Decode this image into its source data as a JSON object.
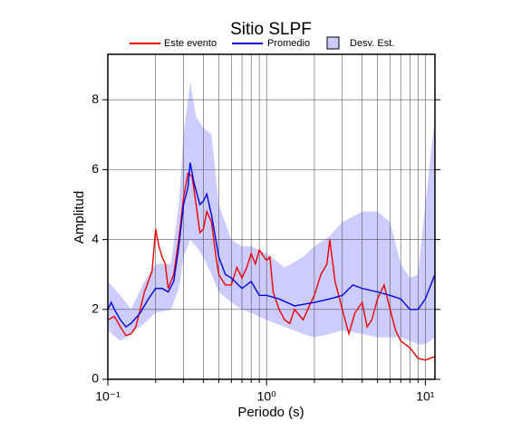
{
  "chart_data": {
    "type": "line",
    "title": "Sitio SLPF",
    "xlabel": "Periodo (s)",
    "ylabel": "Amplitud",
    "xscale": "log",
    "xlim": [
      0.1,
      11.5
    ],
    "ylim": [
      0,
      9.3
    ],
    "xticks": [
      {
        "value": 0.1,
        "label": "10⁻¹"
      },
      {
        "value": 1,
        "label": "10⁰"
      },
      {
        "value": 10,
        "label": "10¹"
      }
    ],
    "xgrid": [
      0.2,
      0.3,
      0.4,
      0.5,
      0.6,
      0.7,
      0.8,
      0.9,
      2,
      3,
      4,
      5,
      6,
      7,
      8,
      9
    ],
    "yticks": [
      0,
      2,
      4,
      6,
      8
    ],
    "grid": true,
    "band": {
      "name": "Desv. Est.",
      "color": "#ccccff",
      "x": [
        0.1,
        0.12,
        0.14,
        0.17,
        0.2,
        0.25,
        0.28,
        0.3,
        0.33,
        0.36,
        0.4,
        0.45,
        0.5,
        0.6,
        0.7,
        0.8,
        1.0,
        1.3,
        1.7,
        2.0,
        2.5,
        3.0,
        4.0,
        5.0,
        6.0,
        7.0,
        8.0,
        9.0,
        10,
        11.5
      ],
      "lower": [
        1.4,
        1.1,
        1.3,
        1.6,
        1.9,
        2.0,
        2.6,
        3.5,
        4.0,
        3.8,
        3.5,
        3.0,
        2.5,
        2.2,
        2.0,
        1.9,
        1.7,
        1.5,
        1.3,
        1.2,
        1.3,
        1.4,
        1.3,
        1.2,
        1.2,
        1.2,
        1.1,
        1.0,
        1.0,
        1.2
      ],
      "upper": [
        2.8,
        2.4,
        2.0,
        2.8,
        3.3,
        3.3,
        5.0,
        7.0,
        8.5,
        7.5,
        7.2,
        7.0,
        5.0,
        4.0,
        3.8,
        3.8,
        3.6,
        3.2,
        3.5,
        3.8,
        4.1,
        4.5,
        4.8,
        4.8,
        4.5,
        3.3,
        2.9,
        3.0,
        5.0,
        7.5
      ]
    },
    "series": [
      {
        "name": "Este evento",
        "color": "#ee0000",
        "x": [
          0.1,
          0.11,
          0.12,
          0.13,
          0.14,
          0.15,
          0.16,
          0.17,
          0.18,
          0.19,
          0.2,
          0.21,
          0.22,
          0.23,
          0.24,
          0.26,
          0.28,
          0.3,
          0.32,
          0.34,
          0.36,
          0.38,
          0.4,
          0.42,
          0.45,
          0.48,
          0.5,
          0.55,
          0.6,
          0.65,
          0.7,
          0.75,
          0.8,
          0.85,
          0.9,
          1.0,
          1.05,
          1.1,
          1.2,
          1.3,
          1.4,
          1.5,
          1.7,
          1.9,
          2.0,
          2.2,
          2.4,
          2.5,
          2.7,
          3.0,
          3.3,
          3.6,
          4.0,
          4.3,
          4.6,
          5.0,
          5.5,
          6.0,
          6.5,
          7.0,
          8.0,
          9.0,
          10,
          11.5
        ],
        "values": [
          1.7,
          1.8,
          1.5,
          1.25,
          1.3,
          1.5,
          2.0,
          2.5,
          2.8,
          3.1,
          4.3,
          3.8,
          3.5,
          3.3,
          2.6,
          3.0,
          4.0,
          5.2,
          5.9,
          5.8,
          5.0,
          4.2,
          4.3,
          4.8,
          4.5,
          3.5,
          3.0,
          2.7,
          2.7,
          3.2,
          2.9,
          3.2,
          3.6,
          3.3,
          3.7,
          3.4,
          3.5,
          2.5,
          2.0,
          1.7,
          1.6,
          2.0,
          1.7,
          2.2,
          2.4,
          3.0,
          3.3,
          4.0,
          2.8,
          2.0,
          1.3,
          1.9,
          2.2,
          1.5,
          1.7,
          2.3,
          2.7,
          2.0,
          1.4,
          1.1,
          0.9,
          0.6,
          0.55,
          0.65
        ]
      },
      {
        "name": "Promedio",
        "color": "#0000dd",
        "x": [
          0.1,
          0.105,
          0.11,
          0.12,
          0.13,
          0.14,
          0.16,
          0.18,
          0.2,
          0.22,
          0.24,
          0.26,
          0.28,
          0.3,
          0.32,
          0.33,
          0.35,
          0.38,
          0.4,
          0.42,
          0.45,
          0.5,
          0.55,
          0.6,
          0.7,
          0.8,
          0.9,
          1.0,
          1.2,
          1.5,
          2.0,
          2.5,
          3.0,
          3.5,
          4.0,
          5.0,
          6.0,
          7.0,
          8.0,
          9.0,
          10,
          11.5
        ],
        "values": [
          2.0,
          2.2,
          2.0,
          1.7,
          1.5,
          1.6,
          1.9,
          2.3,
          2.6,
          2.6,
          2.5,
          2.8,
          3.8,
          5.0,
          5.5,
          6.2,
          5.6,
          5.0,
          5.1,
          5.3,
          4.7,
          3.5,
          3.0,
          2.9,
          2.6,
          2.8,
          2.4,
          2.4,
          2.3,
          2.1,
          2.2,
          2.3,
          2.4,
          2.7,
          2.6,
          2.5,
          2.4,
          2.3,
          2.0,
          2.0,
          2.3,
          3.0
        ]
      }
    ]
  }
}
